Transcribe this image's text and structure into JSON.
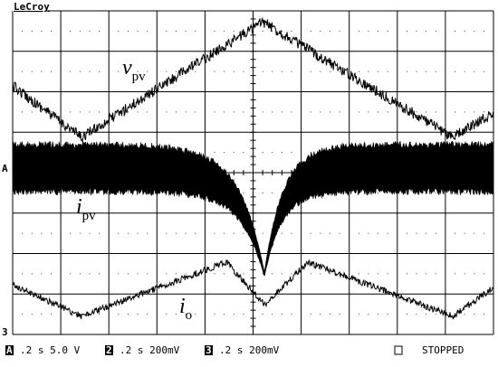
{
  "brand": "LeCroy",
  "labels": [
    {
      "main": "v",
      "sub": "pv"
    },
    {
      "main": "i",
      "sub": "pv"
    },
    {
      "main": "i",
      "sub": "o"
    }
  ],
  "markers": [
    "A",
    "3"
  ],
  "channels": [
    {
      "id": "A",
      "text": ".2 s 5.0 V"
    },
    {
      "id": "2",
      "text": ".2 s 200mV"
    },
    {
      "id": "3",
      "text": ".2 s 200mV"
    }
  ],
  "status": "STOPPED"
}
